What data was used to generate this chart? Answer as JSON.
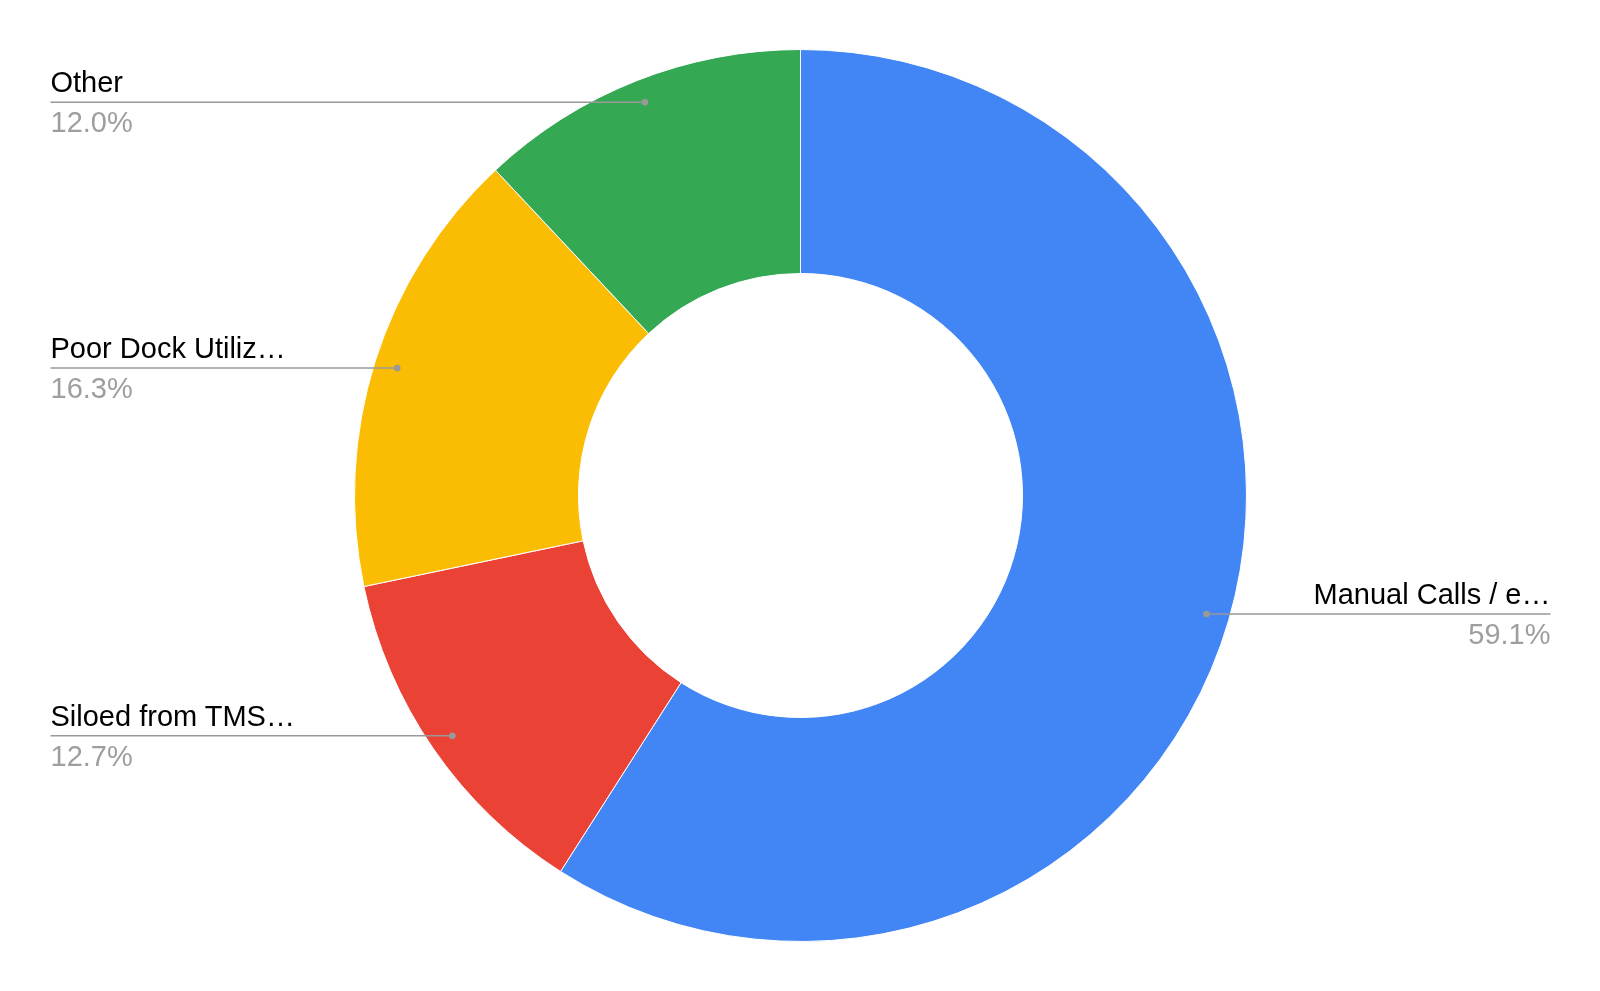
{
  "chart_data": {
    "type": "donut",
    "categories": [
      "Manual Calls / e…",
      "Siloed from TMS…",
      "Poor Dock Utiliz…",
      "Other"
    ],
    "values": [
      59.1,
      12.7,
      16.3,
      12.0
    ],
    "colors": [
      "#4285f4",
      "#ea4335",
      "#fbbc04",
      "#34a853"
    ],
    "value_labels": [
      "59.1%",
      "12.7%",
      "16.3%",
      "12.0%"
    ]
  }
}
